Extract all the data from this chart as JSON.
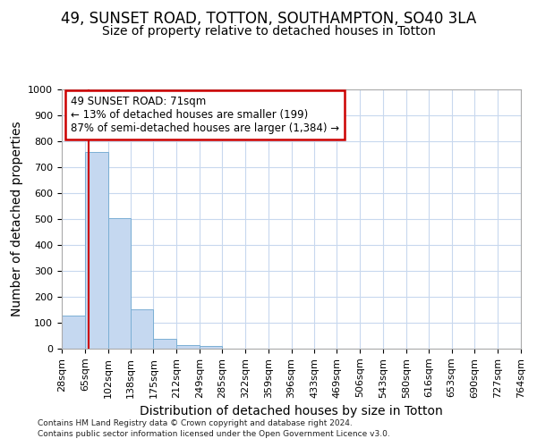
{
  "title": "49, SUNSET ROAD, TOTTON, SOUTHAMPTON, SO40 3LA",
  "subtitle": "Size of property relative to detached houses in Totton",
  "xlabel": "Distribution of detached houses by size in Totton",
  "ylabel": "Number of detached properties",
  "footnote1": "Contains HM Land Registry data © Crown copyright and database right 2024.",
  "footnote2": "Contains public sector information licensed under the Open Government Licence v3.0.",
  "bin_edges": [
    28,
    65,
    102,
    138,
    175,
    212,
    249,
    285,
    322,
    359,
    396,
    433,
    469,
    506,
    543,
    580,
    616,
    653,
    690,
    727,
    764
  ],
  "bar_heights": [
    128,
    760,
    505,
    152,
    38,
    15,
    10,
    0,
    0,
    0,
    0,
    0,
    0,
    0,
    0,
    0,
    0,
    0,
    0,
    0
  ],
  "bar_color": "#c5d8f0",
  "bar_edge_color": "#7bafd4",
  "property_size": 71,
  "vline_color": "#cc0000",
  "annotation_line1": "49 SUNSET ROAD: 71sqm",
  "annotation_line2": "← 13% of detached houses are smaller (199)",
  "annotation_line3": "87% of semi-detached houses are larger (1,384) →",
  "annotation_box_color": "#cc0000",
  "ylim": [
    0,
    1000
  ],
  "yticks": [
    0,
    100,
    200,
    300,
    400,
    500,
    600,
    700,
    800,
    900,
    1000
  ],
  "background_color": "#ffffff",
  "plot_bg_color": "#ffffff",
  "grid_color": "#c8d8ee",
  "title_fontsize": 12,
  "subtitle_fontsize": 10,
  "axis_label_fontsize": 10,
  "tick_fontsize": 8,
  "annotation_fontsize": 8.5
}
